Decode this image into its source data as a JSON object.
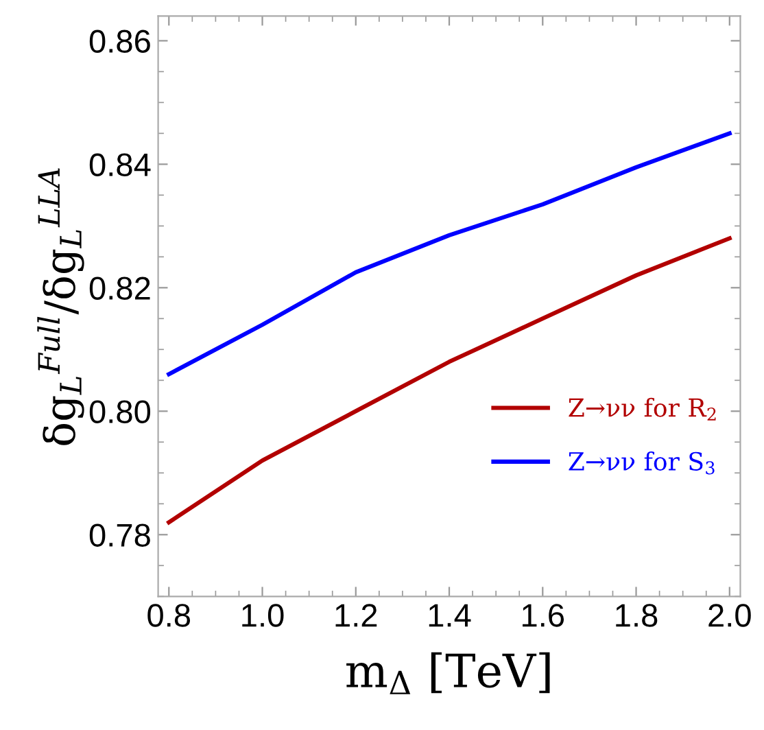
{
  "chart_data": {
    "type": "line",
    "xlabel": "m$_{Δ}$ [TeV]",
    "ylabel": "δg$_{L}$$^{Full}$/δg$_{L}$$^{LLA}$",
    "x": [
      0.8,
      1.0,
      1.2,
      1.4,
      1.6,
      1.8,
      2.0
    ],
    "series": [
      {
        "name": "Z→νν for R$_{2}$",
        "color": "#b20000",
        "values": [
          0.782,
          0.792,
          0.8,
          0.808,
          0.815,
          0.822,
          0.828
        ]
      },
      {
        "name": "Z→νν for S$_{3}$",
        "color": "#0000ff",
        "values": [
          0.806,
          0.814,
          0.8225,
          0.8285,
          0.8335,
          0.8395,
          0.845
        ]
      }
    ],
    "xlim": [
      0.777,
      2.023
    ],
    "ylim": [
      0.77,
      0.864
    ],
    "xticks": [
      {
        "value": 0.8,
        "label": "0.8"
      },
      {
        "value": 1.0,
        "label": "1.0"
      },
      {
        "value": 1.2,
        "label": "1.2"
      },
      {
        "value": 1.4,
        "label": "1.4"
      },
      {
        "value": 1.6,
        "label": "1.6"
      },
      {
        "value": 1.8,
        "label": "1.8"
      },
      {
        "value": 2.0,
        "label": "2.0"
      }
    ],
    "yticks": [
      {
        "value": 0.78,
        "label": "0.78"
      },
      {
        "value": 0.8,
        "label": "0.80"
      },
      {
        "value": 0.82,
        "label": "0.82"
      },
      {
        "value": 0.84,
        "label": "0.84"
      },
      {
        "value": 0.86,
        "label": "0.86"
      }
    ],
    "legend": "lower right",
    "grid": false,
    "marker": "none",
    "line_style": "solid"
  }
}
